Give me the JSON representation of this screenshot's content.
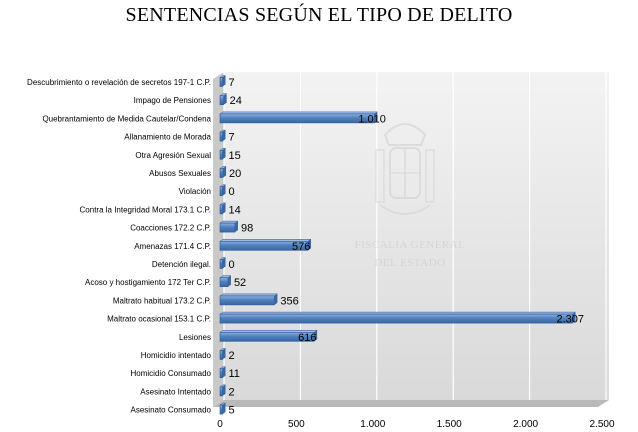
{
  "page": {
    "title": "SENTENCIAS SEGÚN EL TIPO DE DELITO",
    "watermark_lines": [
      "FISCALIA GENERAL",
      "DEL ESTADO"
    ]
  },
  "colors": {
    "bar_fill": "#4f81bd",
    "bar_stroke": "#2f5597",
    "plot_bg_start": "#f3f3f3",
    "plot_bg_end": "#d9d9d9",
    "grid": "#ffffff",
    "watermark": "#c9c9c9"
  },
  "chart_data": {
    "type": "bar",
    "orientation": "horizontal",
    "title": "SENTENCIAS SEGÚN EL TIPO DE DELITO",
    "xlim": [
      0,
      2500
    ],
    "x_ticks": [
      0,
      500,
      1000,
      1500,
      2000,
      2500
    ],
    "x_tick_labels": [
      "0",
      "500",
      "1.000",
      "1.500",
      "2.000",
      "2.500"
    ],
    "grid": true,
    "legend": "none",
    "categories": [
      "Descubrimiento o revelación de secretos 197-1 C.P.",
      "Impago de Pensiones",
      "Quebrantamiento de Medida Cautelar/Condena",
      "Allanamiento de Morada",
      "Otra Agresión Sexual",
      "Abusos Sexuales",
      "Violación",
      "Contra la Integridad Moral 173.1 C.P.",
      "Coacciones 172.2 C.P.",
      "Amenazas 171.4 C.P.",
      "Detención ilegal.",
      "Acoso y hostigamiento 172 Ter C.P.",
      "Maltrato habitual 173.2 C.P.",
      "Maltrato ocasional 153.1 C.P.",
      "Lesiones",
      "Homicidio intentado",
      "Homicidio Consumado",
      "Asesinato Intentado",
      "Asesinato Consumado"
    ],
    "values": [
      7,
      24,
      1010,
      7,
      15,
      20,
      0,
      14,
      98,
      576,
      0,
      52,
      356,
      2307,
      616,
      2,
      11,
      2,
      5
    ],
    "value_labels": [
      "7",
      "24",
      "1.010",
      "7",
      "15",
      "20",
      "0",
      "14",
      "98",
      "576",
      "0",
      "52",
      "356",
      "2.307",
      "616",
      "2",
      "11",
      "2",
      "5"
    ]
  }
}
